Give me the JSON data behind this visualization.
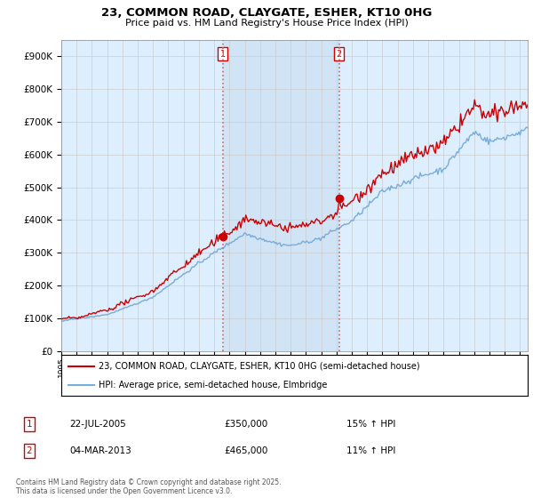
{
  "title": "23, COMMON ROAD, CLAYGATE, ESHER, KT10 0HG",
  "subtitle": "Price paid vs. HM Land Registry's House Price Index (HPI)",
  "yticks": [
    0,
    100000,
    200000,
    300000,
    400000,
    500000,
    600000,
    700000,
    800000,
    900000
  ],
  "ylim": [
    0,
    950000
  ],
  "xlim_start": 1995,
  "xlim_end": 2025.5,
  "marker1_date": 2005.55,
  "marker1_value": 350000,
  "marker2_date": 2013.17,
  "marker2_value": 465000,
  "red_color": "#cc0000",
  "blue_color": "#7aacda",
  "shade_color": "#ddeeff",
  "bg_color": "#ddeeff",
  "grid_color": "#cccccc",
  "legend_line1": "23, COMMON ROAD, CLAYGATE, ESHER, KT10 0HG (semi-detached house)",
  "legend_line2": "HPI: Average price, semi-detached house, Elmbridge",
  "annot1_date": "22-JUL-2005",
  "annot1_price": "£350,000",
  "annot1_hpi": "15% ↑ HPI",
  "annot2_date": "04-MAR-2013",
  "annot2_price": "£465,000",
  "annot2_hpi": "11% ↑ HPI",
  "footer": "Contains HM Land Registry data © Crown copyright and database right 2025.\nThis data is licensed under the Open Government Licence v3.0."
}
